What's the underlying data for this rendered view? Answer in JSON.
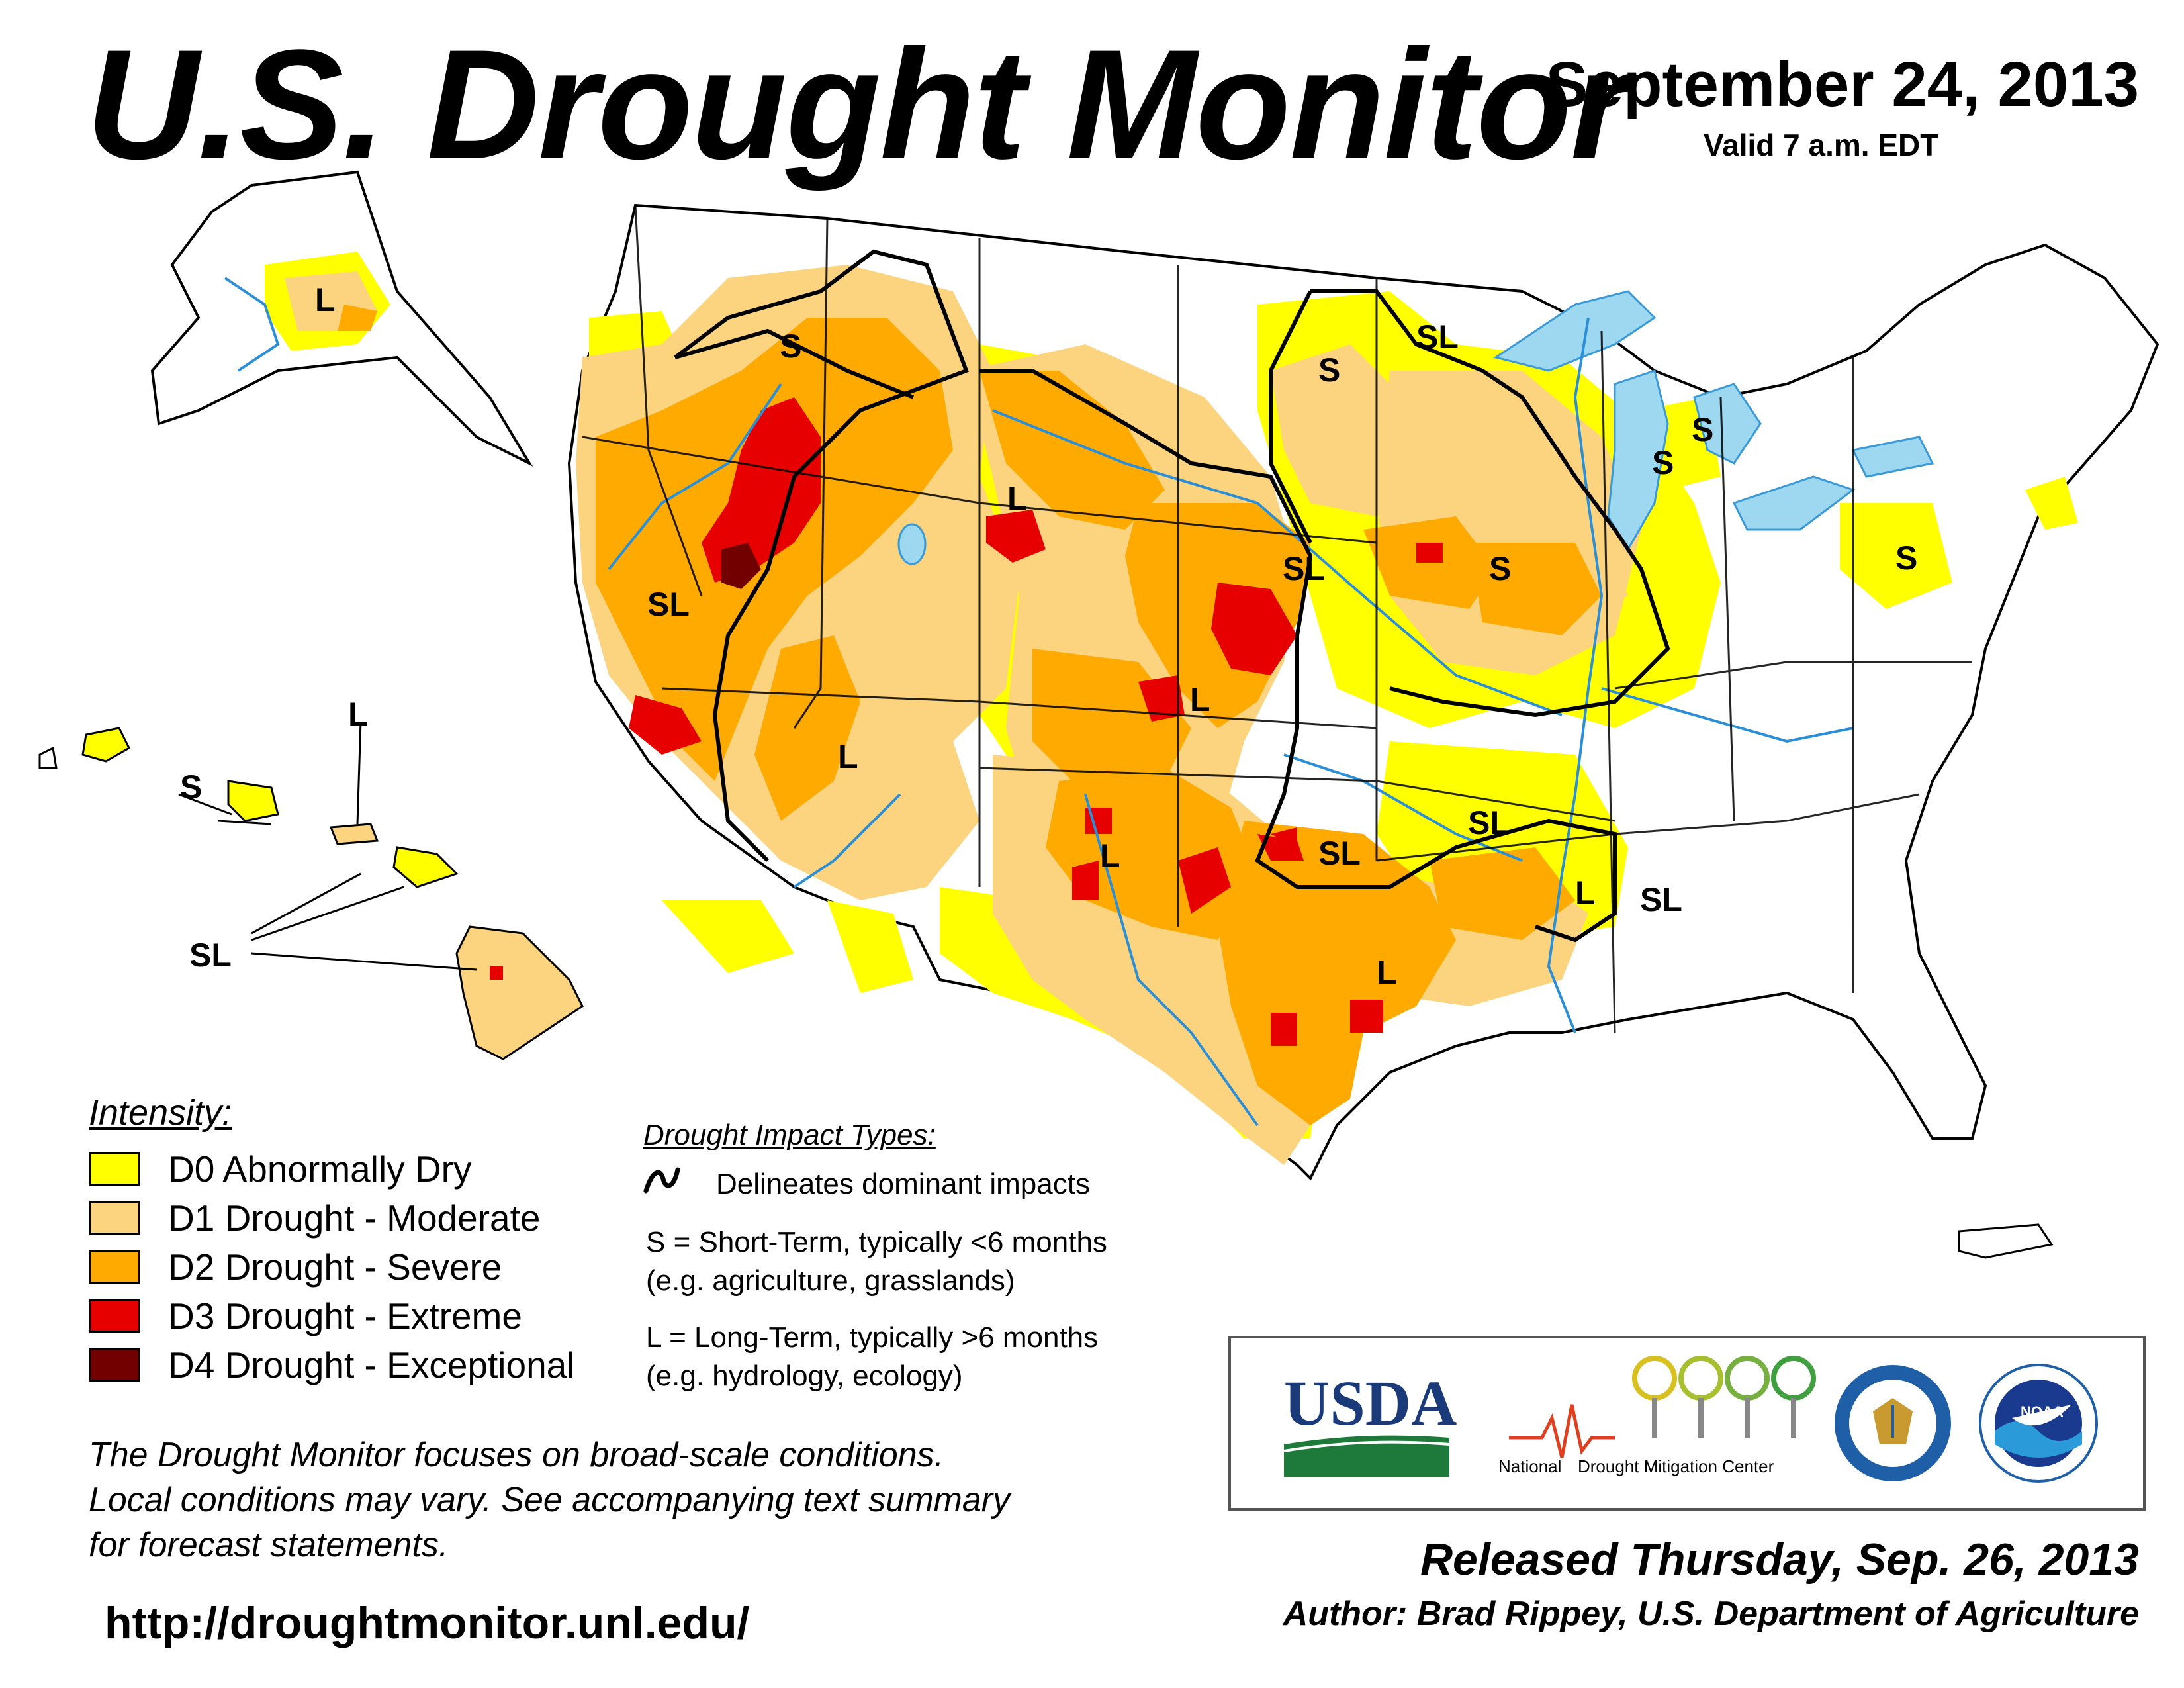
{
  "header": {
    "title": "U.S. Drought Monitor",
    "date": "September 24, 2013",
    "valid": "Valid 7 a.m. EDT"
  },
  "map": {
    "impact_labels": [
      {
        "text": "L",
        "region": "alaska"
      },
      {
        "text": "S",
        "region": "northern-rockies"
      },
      {
        "text": "S",
        "region": "minnesota"
      },
      {
        "text": "SL",
        "region": "minnesota-north"
      },
      {
        "text": "S",
        "region": "michigan-west"
      },
      {
        "text": "S",
        "region": "michigan-north"
      },
      {
        "text": "S",
        "region": "pennsylvania"
      },
      {
        "text": "L",
        "region": "wyoming"
      },
      {
        "text": "SL",
        "region": "nebraska"
      },
      {
        "text": "S",
        "region": "iowa"
      },
      {
        "text": "SL",
        "region": "california"
      },
      {
        "text": "L",
        "region": "colorado"
      },
      {
        "text": "L",
        "region": "arizona"
      },
      {
        "text": "L",
        "region": "new-mexico"
      },
      {
        "text": "SL",
        "region": "oklahoma"
      },
      {
        "text": "SL",
        "region": "arkansas"
      },
      {
        "text": "L",
        "region": "louisiana-north"
      },
      {
        "text": "SL",
        "region": "mississippi"
      },
      {
        "text": "L",
        "region": "texas"
      },
      {
        "text": "S",
        "region": "hawaii-kauai"
      },
      {
        "text": "L",
        "region": "hawaii-molokai"
      },
      {
        "text": "SL",
        "region": "hawaii-maui-big-island"
      }
    ]
  },
  "legend": {
    "title": "Intensity:",
    "items": [
      {
        "label": "D0 Abnormally Dry",
        "color": "#ffff00"
      },
      {
        "label": "D1 Drought - Moderate",
        "color": "#fcd37f"
      },
      {
        "label": "D2 Drought - Severe",
        "color": "#ffaa00"
      },
      {
        "label": "D3 Drought - Extreme",
        "color": "#e60000"
      },
      {
        "label": "D4 Drought - Exceptional",
        "color": "#730000"
      }
    ]
  },
  "impacts": {
    "title": "Drought Impact Types:",
    "delineates": "Delineates dominant impacts",
    "short_term": "S = Short-Term, typically <6 months",
    "short_term_eg": "(e.g. agriculture, grasslands)",
    "long_term": "L = Long-Term, typically >6 months",
    "long_term_eg": "(e.g. hydrology, ecology)"
  },
  "footnote": {
    "line1": "The Drought Monitor focuses on broad-scale conditions.",
    "line2": "Local conditions may vary. See accompanying text summary",
    "line3": "for forecast statements."
  },
  "url": "http://droughtmonitor.unl.edu/",
  "logos": {
    "usda": "USDA",
    "ndmc_word1": "National",
    "ndmc_word2": "Drought Mitigation Center",
    "doc_icon": "department-of-commerce-seal",
    "noaa": "NOAA"
  },
  "released": "Released Thursday, Sep. 26, 2013",
  "author": "Author: Brad Rippey, U.S. Department of Agriculture",
  "colors": {
    "water": "#9dd8f0",
    "rivers": "#2b8fd8",
    "state_lines": "#000000",
    "county_lines": "#9a9a9a"
  }
}
